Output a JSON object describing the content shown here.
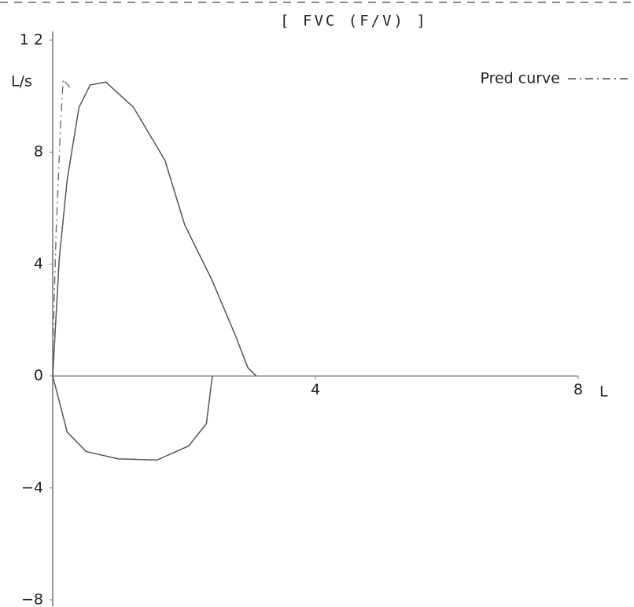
{
  "chart_data": {
    "type": "line",
    "title": "[ FVC (F/V) ]",
    "y_axis_label": "L/s",
    "x_axis_label": "L",
    "legend_label": "Pred curve",
    "xlim": [
      0,
      8
    ],
    "ylim": [
      -8,
      12
    ],
    "xticks": [
      4,
      8
    ],
    "yticks": [
      {
        "value": 12,
        "label": "1 2"
      },
      8,
      4,
      0,
      {
        "value": -4,
        "label": "−4"
      },
      {
        "value": -8,
        "label": "−8"
      }
    ],
    "grid": false,
    "series": [
      {
        "color": "#555555",
        "style": "solid",
        "x": [
          0,
          0.1,
          0.22,
          0.4,
          0.57,
          0.81,
          1.23,
          1.71,
          2.01,
          2.43,
          2.79,
          2.97,
          3.1
        ],
        "values": [
          0,
          4.2,
          7.0,
          9.6,
          10.4,
          10.5,
          9.6,
          7.7,
          5.4,
          3.4,
          1.4,
          0.3,
          0
        ]
      },
      {
        "color": "#555555",
        "style": "solid",
        "x": [
          0,
          0.22,
          0.51,
          1.0,
          1.59,
          2.07,
          2.34,
          2.43
        ],
        "values": [
          0,
          -2.0,
          -2.7,
          -2.96,
          -3.0,
          -2.5,
          -1.7,
          0
        ]
      },
      {
        "name": "Pred curve",
        "color": "#777777",
        "style": "dashdot",
        "x": [
          0,
          0.05,
          0.12,
          0.16,
          0.3
        ],
        "values": [
          0.8,
          5.0,
          9.0,
          10.6,
          10.2
        ]
      }
    ]
  }
}
